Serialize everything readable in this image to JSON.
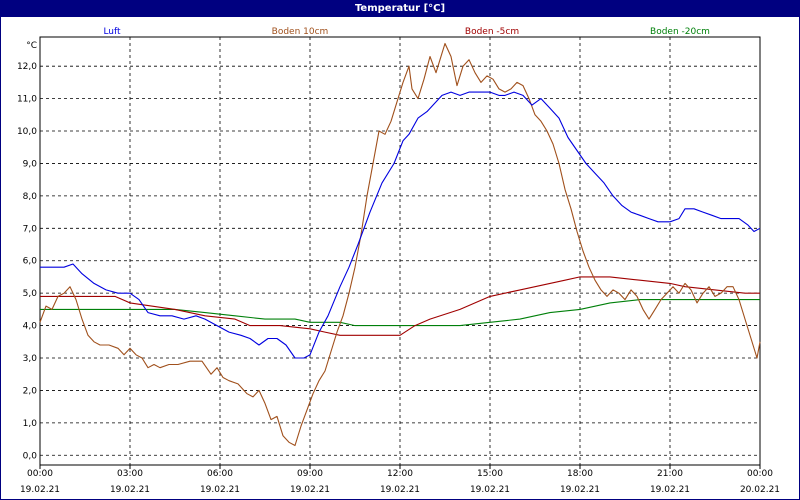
{
  "window": {
    "title": "Temperatur [°C]"
  },
  "chart_data": {
    "type": "line",
    "title": "Temperatur [°C]",
    "ylabel": "°C",
    "ylim": [
      -0.3,
      12.9
    ],
    "yticks": [
      "0,0",
      "1,0",
      "2,0",
      "3,0",
      "4,0",
      "5,0",
      "6,0",
      "7,0",
      "8,0",
      "9,0",
      "10,0",
      "11,0",
      "12,0"
    ],
    "xlim": [
      0,
      24
    ],
    "xticks": [
      {
        "time": "00:00",
        "date": "19.02.21"
      },
      {
        "time": "03:00",
        "date": "19.02.21"
      },
      {
        "time": "06:00",
        "date": "19.02.21"
      },
      {
        "time": "09:00",
        "date": "19.02.21"
      },
      {
        "time": "12:00",
        "date": "19.02.21"
      },
      {
        "time": "15:00",
        "date": "19.02.21"
      },
      {
        "time": "18:00",
        "date": "19.02.21"
      },
      {
        "time": "21:00",
        "date": "19.02.21"
      },
      {
        "time": "00:00",
        "date": "20.02.21"
      }
    ],
    "grid": true,
    "legend_position": "top",
    "series": [
      {
        "name": "Luft",
        "color": "#0000e0",
        "points": [
          [
            0,
            5.8
          ],
          [
            0.5,
            5.8
          ],
          [
            0.8,
            5.8
          ],
          [
            1.1,
            5.9
          ],
          [
            1.4,
            5.6
          ],
          [
            1.8,
            5.3
          ],
          [
            2.2,
            5.1
          ],
          [
            2.6,
            5.0
          ],
          [
            3.0,
            5.0
          ],
          [
            3.3,
            4.8
          ],
          [
            3.6,
            4.4
          ],
          [
            4.0,
            4.3
          ],
          [
            4.4,
            4.3
          ],
          [
            4.8,
            4.2
          ],
          [
            5.2,
            4.3
          ],
          [
            5.5,
            4.2
          ],
          [
            5.9,
            4.0
          ],
          [
            6.3,
            3.8
          ],
          [
            6.7,
            3.7
          ],
          [
            7.0,
            3.6
          ],
          [
            7.3,
            3.4
          ],
          [
            7.6,
            3.6
          ],
          [
            7.9,
            3.6
          ],
          [
            8.2,
            3.4
          ],
          [
            8.5,
            3.0
          ],
          [
            8.8,
            3.0
          ],
          [
            9.0,
            3.1
          ],
          [
            9.3,
            3.8
          ],
          [
            9.6,
            4.3
          ],
          [
            10.0,
            5.2
          ],
          [
            10.3,
            5.8
          ],
          [
            10.6,
            6.5
          ],
          [
            11.0,
            7.5
          ],
          [
            11.4,
            8.4
          ],
          [
            11.8,
            9.0
          ],
          [
            12.1,
            9.7
          ],
          [
            12.3,
            9.9
          ],
          [
            12.6,
            10.4
          ],
          [
            12.9,
            10.6
          ],
          [
            13.1,
            10.8
          ],
          [
            13.4,
            11.1
          ],
          [
            13.7,
            11.2
          ],
          [
            14.0,
            11.1
          ],
          [
            14.3,
            11.2
          ],
          [
            14.6,
            11.2
          ],
          [
            15.0,
            11.2
          ],
          [
            15.3,
            11.1
          ],
          [
            15.5,
            11.1
          ],
          [
            15.8,
            11.2
          ],
          [
            16.1,
            11.1
          ],
          [
            16.4,
            10.8
          ],
          [
            16.7,
            11.0
          ],
          [
            17.0,
            10.7
          ],
          [
            17.3,
            10.4
          ],
          [
            17.6,
            9.8
          ],
          [
            17.9,
            9.4
          ],
          [
            18.2,
            9.0
          ],
          [
            18.5,
            8.7
          ],
          [
            18.8,
            8.4
          ],
          [
            19.1,
            8.0
          ],
          [
            19.4,
            7.7
          ],
          [
            19.7,
            7.5
          ],
          [
            20.0,
            7.4
          ],
          [
            20.3,
            7.3
          ],
          [
            20.6,
            7.2
          ],
          [
            21.0,
            7.2
          ],
          [
            21.3,
            7.3
          ],
          [
            21.5,
            7.6
          ],
          [
            21.8,
            7.6
          ],
          [
            22.1,
            7.5
          ],
          [
            22.4,
            7.4
          ],
          [
            22.7,
            7.3
          ],
          [
            23.0,
            7.3
          ],
          [
            23.3,
            7.3
          ],
          [
            23.6,
            7.1
          ],
          [
            23.8,
            6.9
          ],
          [
            24.0,
            7.0
          ]
        ]
      },
      {
        "name": "Boden 10cm",
        "color": "#a0501c",
        "points": [
          [
            0,
            4.1
          ],
          [
            0.2,
            4.6
          ],
          [
            0.4,
            4.5
          ],
          [
            0.6,
            4.9
          ],
          [
            0.8,
            5.0
          ],
          [
            1.0,
            5.2
          ],
          [
            1.2,
            4.8
          ],
          [
            1.4,
            4.2
          ],
          [
            1.6,
            3.7
          ],
          [
            1.8,
            3.5
          ],
          [
            2.0,
            3.4
          ],
          [
            2.3,
            3.4
          ],
          [
            2.6,
            3.3
          ],
          [
            2.8,
            3.1
          ],
          [
            3.0,
            3.3
          ],
          [
            3.2,
            3.1
          ],
          [
            3.4,
            3.0
          ],
          [
            3.6,
            2.7
          ],
          [
            3.8,
            2.8
          ],
          [
            4.0,
            2.7
          ],
          [
            4.3,
            2.8
          ],
          [
            4.6,
            2.8
          ],
          [
            5.0,
            2.9
          ],
          [
            5.4,
            2.9
          ],
          [
            5.7,
            2.5
          ],
          [
            5.9,
            2.7
          ],
          [
            6.1,
            2.4
          ],
          [
            6.3,
            2.3
          ],
          [
            6.6,
            2.2
          ],
          [
            6.9,
            1.9
          ],
          [
            7.1,
            1.8
          ],
          [
            7.3,
            2.0
          ],
          [
            7.5,
            1.6
          ],
          [
            7.7,
            1.1
          ],
          [
            7.9,
            1.2
          ],
          [
            8.1,
            0.6
          ],
          [
            8.3,
            0.4
          ],
          [
            8.5,
            0.3
          ],
          [
            8.7,
            0.9
          ],
          [
            8.9,
            1.4
          ],
          [
            9.1,
            1.9
          ],
          [
            9.3,
            2.3
          ],
          [
            9.5,
            2.6
          ],
          [
            9.7,
            3.2
          ],
          [
            9.9,
            3.8
          ],
          [
            10.1,
            4.3
          ],
          [
            10.3,
            5.0
          ],
          [
            10.5,
            5.8
          ],
          [
            10.7,
            6.8
          ],
          [
            10.9,
            8.0
          ],
          [
            11.1,
            9.0
          ],
          [
            11.3,
            10.0
          ],
          [
            11.5,
            9.9
          ],
          [
            11.7,
            10.3
          ],
          [
            11.9,
            10.9
          ],
          [
            12.1,
            11.5
          ],
          [
            12.3,
            12.0
          ],
          [
            12.4,
            11.3
          ],
          [
            12.6,
            11.0
          ],
          [
            12.8,
            11.6
          ],
          [
            13.0,
            12.3
          ],
          [
            13.2,
            11.8
          ],
          [
            13.4,
            12.4
          ],
          [
            13.5,
            12.7
          ],
          [
            13.7,
            12.3
          ],
          [
            13.9,
            11.4
          ],
          [
            14.1,
            12.0
          ],
          [
            14.3,
            12.2
          ],
          [
            14.5,
            11.8
          ],
          [
            14.7,
            11.5
          ],
          [
            14.9,
            11.7
          ],
          [
            15.1,
            11.6
          ],
          [
            15.3,
            11.3
          ],
          [
            15.5,
            11.2
          ],
          [
            15.7,
            11.3
          ],
          [
            15.9,
            11.5
          ],
          [
            16.1,
            11.4
          ],
          [
            16.3,
            11.0
          ],
          [
            16.5,
            10.5
          ],
          [
            16.7,
            10.3
          ],
          [
            16.9,
            10.0
          ],
          [
            17.1,
            9.6
          ],
          [
            17.3,
            9.0
          ],
          [
            17.5,
            8.2
          ],
          [
            17.7,
            7.6
          ],
          [
            17.9,
            6.9
          ],
          [
            18.1,
            6.3
          ],
          [
            18.3,
            5.8
          ],
          [
            18.5,
            5.4
          ],
          [
            18.7,
            5.1
          ],
          [
            18.9,
            4.9
          ],
          [
            19.1,
            5.1
          ],
          [
            19.3,
            5.0
          ],
          [
            19.5,
            4.8
          ],
          [
            19.7,
            5.1
          ],
          [
            19.9,
            4.9
          ],
          [
            20.1,
            4.5
          ],
          [
            20.3,
            4.2
          ],
          [
            20.5,
            4.5
          ],
          [
            20.7,
            4.8
          ],
          [
            20.9,
            5.0
          ],
          [
            21.1,
            5.2
          ],
          [
            21.3,
            5.0
          ],
          [
            21.5,
            5.3
          ],
          [
            21.7,
            5.1
          ],
          [
            21.9,
            4.7
          ],
          [
            22.1,
            5.0
          ],
          [
            22.3,
            5.2
          ],
          [
            22.5,
            4.9
          ],
          [
            22.7,
            5.0
          ],
          [
            22.9,
            5.2
          ],
          [
            23.1,
            5.2
          ],
          [
            23.3,
            4.8
          ],
          [
            23.5,
            4.2
          ],
          [
            23.7,
            3.6
          ],
          [
            23.9,
            3.0
          ],
          [
            24.0,
            3.5
          ]
        ]
      },
      {
        "name": "Boden -5cm",
        "color": "#a00000",
        "points": [
          [
            0,
            4.9
          ],
          [
            2.5,
            4.9
          ],
          [
            3.0,
            4.7
          ],
          [
            4.5,
            4.5
          ],
          [
            5.5,
            4.3
          ],
          [
            6.5,
            4.2
          ],
          [
            7.0,
            4.0
          ],
          [
            8.0,
            4.0
          ],
          [
            9.0,
            3.9
          ],
          [
            9.5,
            3.8
          ],
          [
            10.0,
            3.7
          ],
          [
            12.0,
            3.7
          ],
          [
            12.5,
            4.0
          ],
          [
            13.0,
            4.2
          ],
          [
            14.0,
            4.5
          ],
          [
            15.0,
            4.9
          ],
          [
            16.0,
            5.1
          ],
          [
            17.0,
            5.3
          ],
          [
            17.5,
            5.4
          ],
          [
            18.0,
            5.5
          ],
          [
            19.0,
            5.5
          ],
          [
            20.0,
            5.4
          ],
          [
            21.0,
            5.3
          ],
          [
            21.5,
            5.2
          ],
          [
            22.5,
            5.1
          ],
          [
            23.5,
            5.0
          ],
          [
            24.0,
            5.0
          ]
        ]
      },
      {
        "name": "Boden -20cm",
        "color": "#00800a",
        "points": [
          [
            0,
            4.5
          ],
          [
            4.5,
            4.5
          ],
          [
            5.5,
            4.4
          ],
          [
            6.5,
            4.3
          ],
          [
            7.5,
            4.2
          ],
          [
            8.5,
            4.2
          ],
          [
            9.0,
            4.1
          ],
          [
            10.0,
            4.1
          ],
          [
            10.5,
            4.0
          ],
          [
            14.0,
            4.0
          ],
          [
            15.0,
            4.1
          ],
          [
            16.0,
            4.2
          ],
          [
            17.0,
            4.4
          ],
          [
            18.0,
            4.5
          ],
          [
            19.0,
            4.7
          ],
          [
            20.0,
            4.8
          ],
          [
            22.0,
            4.8
          ],
          [
            24.0,
            4.8
          ]
        ]
      }
    ]
  }
}
